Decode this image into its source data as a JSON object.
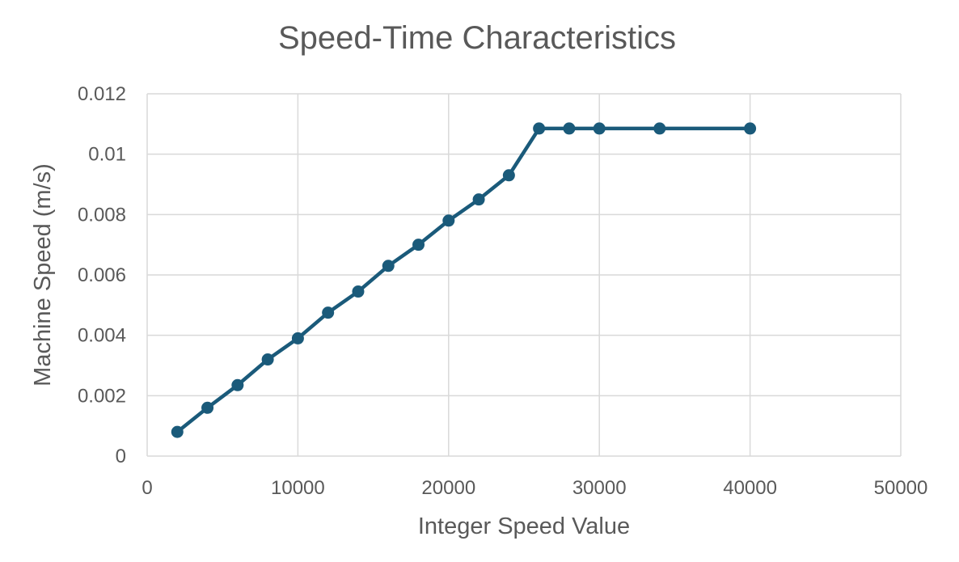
{
  "chart_data": {
    "type": "line",
    "title": "Speed-Time Characteristics",
    "xlabel": "Integer Speed Value",
    "ylabel": "Machine Speed (m/s)",
    "xlim": [
      0,
      50000
    ],
    "ylim": [
      0,
      0.012
    ],
    "x_ticks": [
      "0",
      "10000",
      "20000",
      "30000",
      "40000",
      "50000"
    ],
    "y_ticks": [
      "0",
      "0.002",
      "0.004",
      "0.006",
      "0.008",
      "0.01",
      "0.012"
    ],
    "grid": true,
    "legend": "none",
    "series_color": "#1a5a7a",
    "series": [
      {
        "x": [
          2000,
          4000,
          6000,
          8000,
          10000,
          12000,
          14000,
          16000,
          18000,
          20000,
          22000,
          24000,
          26000,
          28000,
          30000,
          34000,
          40000
        ],
        "values": [
          0.0008,
          0.0016,
          0.00235,
          0.0032,
          0.0039,
          0.00475,
          0.00545,
          0.0063,
          0.007,
          0.0078,
          0.0085,
          0.0093,
          0.01085,
          0.01085,
          0.01085,
          0.01085,
          0.01085
        ]
      }
    ]
  }
}
